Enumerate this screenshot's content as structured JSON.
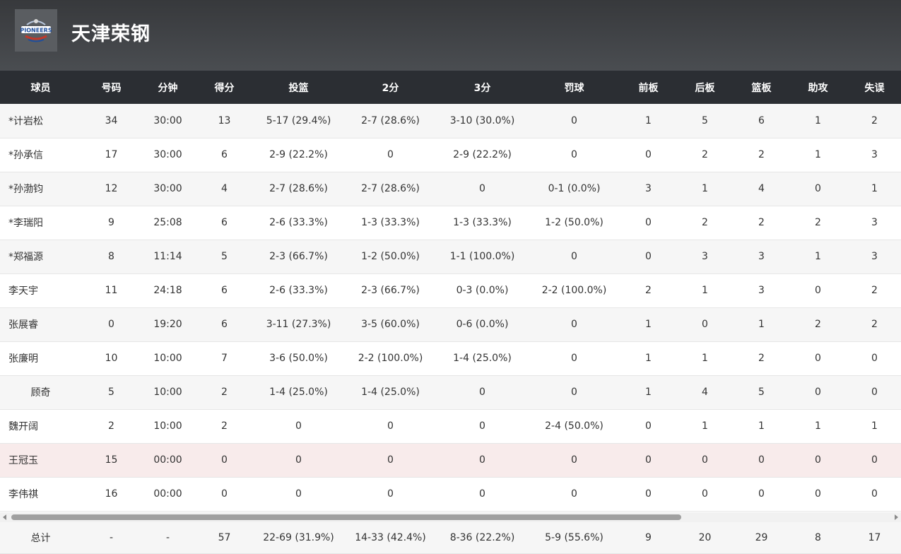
{
  "team": {
    "name": "天津荣钢",
    "logo_text": "PIONEERS"
  },
  "columns": [
    "球员",
    "号码",
    "分钟",
    "得分",
    "投篮",
    "2分",
    "3分",
    "罚球",
    "前板",
    "后板",
    "篮板",
    "助攻",
    "失误"
  ],
  "players": [
    {
      "name": "*计岩松",
      "num": "34",
      "min": "30:00",
      "pts": "13",
      "fg": "5-17 (29.4%)",
      "two": "2-7 (28.6%)",
      "three": "3-10 (30.0%)",
      "ft": "0",
      "oreb": "1",
      "dreb": "5",
      "reb": "6",
      "ast": "1",
      "tov": "2"
    },
    {
      "name": "*孙承信",
      "num": "17",
      "min": "30:00",
      "pts": "6",
      "fg": "2-9 (22.2%)",
      "two": "0",
      "three": "2-9 (22.2%)",
      "ft": "0",
      "oreb": "0",
      "dreb": "2",
      "reb": "2",
      "ast": "1",
      "tov": "3"
    },
    {
      "name": "*孙渤钧",
      "num": "12",
      "min": "30:00",
      "pts": "4",
      "fg": "2-7 (28.6%)",
      "two": "2-7 (28.6%)",
      "three": "0",
      "ft": "0-1 (0.0%)",
      "oreb": "3",
      "dreb": "1",
      "reb": "4",
      "ast": "0",
      "tov": "1"
    },
    {
      "name": "*李瑞阳",
      "num": "9",
      "min": "25:08",
      "pts": "6",
      "fg": "2-6 (33.3%)",
      "two": "1-3 (33.3%)",
      "three": "1-3 (33.3%)",
      "ft": "1-2 (50.0%)",
      "oreb": "0",
      "dreb": "2",
      "reb": "2",
      "ast": "2",
      "tov": "3"
    },
    {
      "name": "*郑福源",
      "num": "8",
      "min": "11:14",
      "pts": "5",
      "fg": "2-3 (66.7%)",
      "two": "1-2 (50.0%)",
      "three": "1-1 (100.0%)",
      "ft": "0",
      "oreb": "0",
      "dreb": "3",
      "reb": "3",
      "ast": "1",
      "tov": "3"
    },
    {
      "name": "李天宇",
      "num": "11",
      "min": "24:18",
      "pts": "6",
      "fg": "2-6 (33.3%)",
      "two": "2-3 (66.7%)",
      "three": "0-3 (0.0%)",
      "ft": "2-2 (100.0%)",
      "oreb": "2",
      "dreb": "1",
      "reb": "3",
      "ast": "0",
      "tov": "2"
    },
    {
      "name": "张展睿",
      "num": "0",
      "min": "19:20",
      "pts": "6",
      "fg": "3-11 (27.3%)",
      "two": "3-5 (60.0%)",
      "three": "0-6 (0.0%)",
      "ft": "0",
      "oreb": "1",
      "dreb": "0",
      "reb": "1",
      "ast": "2",
      "tov": "2"
    },
    {
      "name": "张廉明",
      "num": "10",
      "min": "10:00",
      "pts": "7",
      "fg": "3-6 (50.0%)",
      "two": "2-2 (100.0%)",
      "three": "1-4 (25.0%)",
      "ft": "0",
      "oreb": "1",
      "dreb": "1",
      "reb": "2",
      "ast": "0",
      "tov": "0"
    },
    {
      "name": "顾奇",
      "num": "5",
      "min": "10:00",
      "pts": "2",
      "fg": "1-4 (25.0%)",
      "two": "1-4 (25.0%)",
      "three": "0",
      "ft": "0",
      "oreb": "1",
      "dreb": "4",
      "reb": "5",
      "ast": "0",
      "tov": "0"
    },
    {
      "name": "魏开阔",
      "num": "2",
      "min": "10:00",
      "pts": "2",
      "fg": "0",
      "two": "0",
      "three": "0",
      "ft": "2-4 (50.0%)",
      "oreb": "0",
      "dreb": "1",
      "reb": "1",
      "ast": "1",
      "tov": "1"
    },
    {
      "name": "王冠玉",
      "num": "15",
      "min": "00:00",
      "pts": "0",
      "fg": "0",
      "two": "0",
      "three": "0",
      "ft": "0",
      "oreb": "0",
      "dreb": "0",
      "reb": "0",
      "ast": "0",
      "tov": "0"
    },
    {
      "name": "李伟祺",
      "num": "16",
      "min": "00:00",
      "pts": "0",
      "fg": "0",
      "two": "0",
      "three": "0",
      "ft": "0",
      "oreb": "0",
      "dreb": "0",
      "reb": "0",
      "ast": "0",
      "tov": "0"
    }
  ],
  "totals": {
    "name": "总计",
    "num": "-",
    "min": "-",
    "pts": "57",
    "fg": "22-69 (31.9%)",
    "two": "14-33 (42.4%)",
    "three": "8-36 (22.2%)",
    "ft": "5-9 (55.6%)",
    "oreb": "9",
    "dreb": "20",
    "reb": "29",
    "ast": "8",
    "tov": "17"
  },
  "colors": {
    "header_bg": "#3f4246",
    "table_head_bg": "#2b2e33",
    "highlight_row": "#f8ebeb"
  }
}
